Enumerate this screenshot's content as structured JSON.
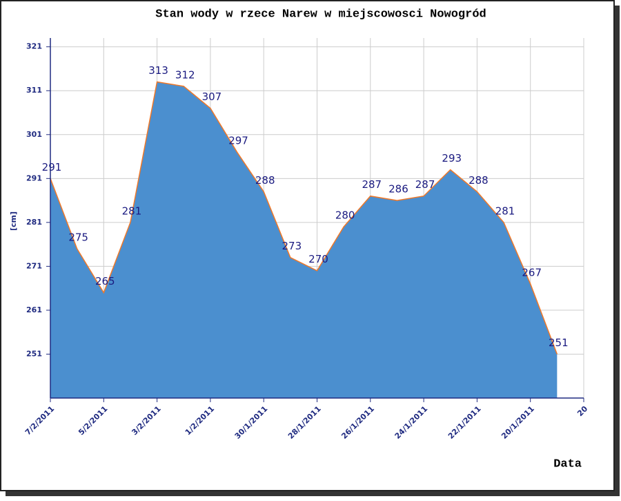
{
  "chart_data": {
    "type": "area",
    "title": "Stan wody w rzece Narew  w miejscowosci Nowogród",
    "y_label": "[cm]",
    "x_label": "Data",
    "categories": [
      "7/2/2011",
      null,
      "5/2/2011",
      null,
      "3/2/2011",
      null,
      "1/2/2011",
      null,
      "30/1/2011",
      null,
      "28/1/2011",
      null,
      "26/1/2011",
      null,
      "24/1/2011",
      null,
      "22/1/2011",
      null,
      "20/1/2011",
      null,
      "20"
    ],
    "values": [
      291,
      275,
      265,
      281,
      313,
      312,
      307,
      297,
      288,
      273,
      270,
      280,
      287,
      286,
      287,
      293,
      288,
      281,
      267,
      251,
      null
    ],
    "color": "#4b8fcf",
    "line_color": "#f07828",
    "ylim": [
      241,
      323
    ],
    "yticks": [
      251,
      261,
      271,
      281,
      291,
      301,
      311,
      321
    ],
    "grid": true
  }
}
